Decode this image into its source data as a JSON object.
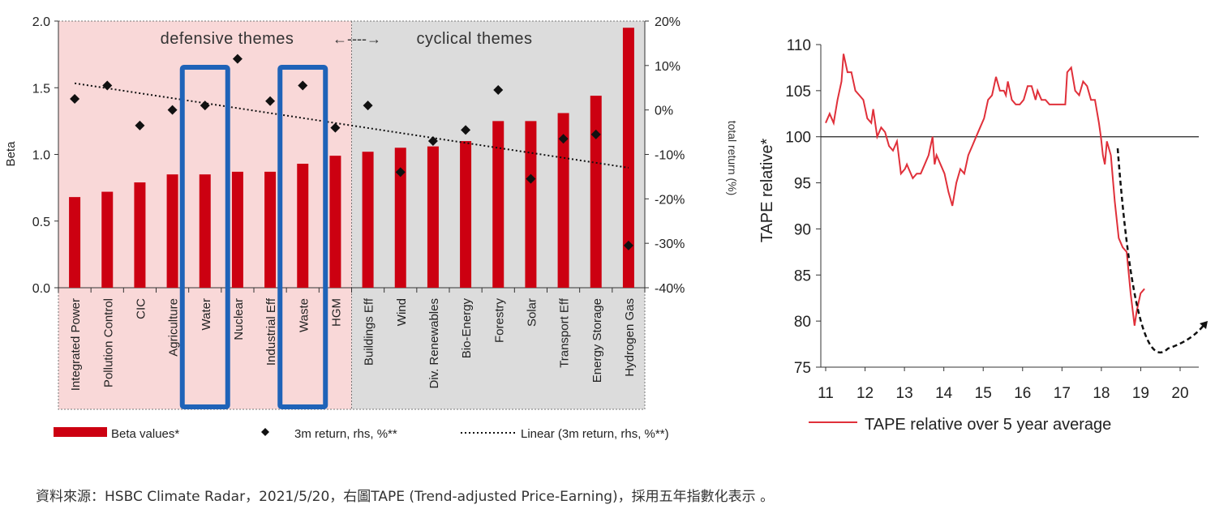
{
  "source_note": "資料來源：HSBC Climate Radar，2021/5/20，右圖TAPE (Trend-adjusted Price-Earning)，採用五年指數化表示 。",
  "chart_data": [
    {
      "type": "bar",
      "categories": [
        "Integrated Power",
        "Pollution Control",
        "CIC",
        "Agriculture",
        "Water",
        "Nuclear",
        "Industrial Eff",
        "Waste",
        "HGM",
        "Buildings Eff",
        "Wind",
        "Div. Renewables",
        "Bio-Energy",
        "Forestry",
        "Solar",
        "Transport Eff",
        "Energy Storage",
        "Hydrogen Gas"
      ],
      "values": [
        0.68,
        0.72,
        0.79,
        0.85,
        0.85,
        0.87,
        0.87,
        0.93,
        0.99,
        1.02,
        1.05,
        1.06,
        1.1,
        1.25,
        1.25,
        1.31,
        1.44,
        1.95
      ],
      "return_3m": [
        2.5,
        5.5,
        -3.5,
        0,
        1,
        11.5,
        2,
        5.5,
        -4,
        1,
        -14,
        -7,
        -4.5,
        4.5,
        -15.5,
        -6.5,
        -5.5,
        -30.5
      ],
      "trend_start": 6,
      "trend_end": -13,
      "ylabel": "Beta",
      "y2label": "total return (%)",
      "ylim": [
        0,
        2.0
      ],
      "yticks": [
        "0.0",
        "0.5",
        "1.0",
        "1.5",
        "2.0"
      ],
      "y2lim": [
        -40,
        20
      ],
      "y2ticks": [
        "-40%",
        "-30%",
        "-20%",
        "-10%",
        "0%",
        "10%",
        "20%"
      ],
      "defensive_count": 9,
      "group_defensive": "defensive themes",
      "group_cyclical": "cyclical themes",
      "group_arrow": "←----→",
      "highlighted": [
        "Water",
        "Waste"
      ],
      "legend": {
        "bar": "Beta values*",
        "dot": "3m return, rhs, %**",
        "line": "Linear (3m return, rhs, %**)"
      },
      "colors": {
        "bar": "#cc0011",
        "dot": "#111111",
        "defensive_bg": "#f9d8d8",
        "cyclical_bg": "#dcdcdc",
        "highlight": "#1f63b8"
      }
    },
    {
      "type": "line",
      "ylabel": "TAPE relative*",
      "ylim": [
        75,
        110
      ],
      "yticks": [
        "75",
        "80",
        "85",
        "90",
        "95",
        "100",
        "105",
        "110"
      ],
      "xticks": [
        "11",
        "12",
        "13",
        "14",
        "15",
        "16",
        "17",
        "18",
        "19",
        "20"
      ],
      "baseline": 100,
      "series": [
        {
          "name": "TAPE relative over 5 year average",
          "color": "#e0303a",
          "points": [
            [
              11.0,
              101.5
            ],
            [
              11.1,
              102.5
            ],
            [
              11.2,
              101.5
            ],
            [
              11.3,
              104
            ],
            [
              11.4,
              106
            ],
            [
              11.45,
              109
            ],
            [
              11.55,
              107
            ],
            [
              11.65,
              107
            ],
            [
              11.75,
              105
            ],
            [
              11.85,
              104.5
            ],
            [
              11.95,
              104
            ],
            [
              12.05,
              102
            ],
            [
              12.15,
              101.5
            ],
            [
              12.2,
              103
            ],
            [
              12.3,
              100
            ],
            [
              12.4,
              101
            ],
            [
              12.5,
              100.5
            ],
            [
              12.6,
              99
            ],
            [
              12.7,
              98.5
            ],
            [
              12.8,
              99.5
            ],
            [
              12.9,
              96
            ],
            [
              13.0,
              96.5
            ],
            [
              13.05,
              97
            ],
            [
              13.1,
              96.5
            ],
            [
              13.2,
              95.5
            ],
            [
              13.3,
              96
            ],
            [
              13.4,
              96
            ],
            [
              13.5,
              97
            ],
            [
              13.6,
              98
            ],
            [
              13.7,
              100
            ],
            [
              13.75,
              97
            ],
            [
              13.8,
              98
            ],
            [
              13.9,
              97
            ],
            [
              14.0,
              96
            ],
            [
              14.1,
              94
            ],
            [
              14.2,
              92.5
            ],
            [
              14.3,
              95
            ],
            [
              14.4,
              96.5
            ],
            [
              14.5,
              96
            ],
            [
              14.6,
              98
            ],
            [
              14.7,
              99
            ],
            [
              14.8,
              100
            ],
            [
              14.9,
              101
            ],
            [
              15.0,
              102
            ],
            [
              15.1,
              104
            ],
            [
              15.2,
              104.5
            ],
            [
              15.3,
              106.5
            ],
            [
              15.4,
              105
            ],
            [
              15.5,
              105
            ],
            [
              15.55,
              104.5
            ],
            [
              15.6,
              106
            ],
            [
              15.7,
              104
            ],
            [
              15.8,
              103.5
            ],
            [
              15.9,
              103.5
            ],
            [
              16.0,
              104
            ],
            [
              16.1,
              105.5
            ],
            [
              16.2,
              105.5
            ],
            [
              16.3,
              104
            ],
            [
              16.35,
              105
            ],
            [
              16.45,
              104
            ],
            [
              16.55,
              104
            ],
            [
              16.65,
              103.5
            ],
            [
              16.75,
              103.5
            ],
            [
              16.85,
              103.5
            ],
            [
              16.95,
              103.5
            ],
            [
              17.05,
              103.5
            ],
            [
              17.1,
              107
            ],
            [
              17.2,
              107.5
            ],
            [
              17.3,
              105
            ],
            [
              17.4,
              104.5
            ],
            [
              17.5,
              106
            ],
            [
              17.6,
              105.5
            ],
            [
              17.7,
              104
            ],
            [
              17.8,
              104
            ],
            [
              17.9,
              101.5
            ],
            [
              17.95,
              100
            ],
            [
              18.0,
              98
            ],
            [
              18.05,
              97
            ],
            [
              18.1,
              99.5
            ],
            [
              18.2,
              98
            ],
            [
              18.3,
              93
            ],
            [
              18.4,
              89
            ],
            [
              18.5,
              88
            ],
            [
              18.6,
              87.5
            ],
            [
              18.7,
              83
            ],
            [
              18.8,
              79.5
            ],
            [
              18.85,
              81
            ],
            [
              18.95,
              83
            ],
            [
              19.05,
              83.5
            ]
          ],
          "note": "x in chart units, see xmap"
        }
      ],
      "xmap": {
        "11": 11.0,
        "20": 19.95
      },
      "colors": {
        "line": "#e0303a",
        "baseline": "#222222",
        "arrow": "#111111"
      }
    }
  ]
}
